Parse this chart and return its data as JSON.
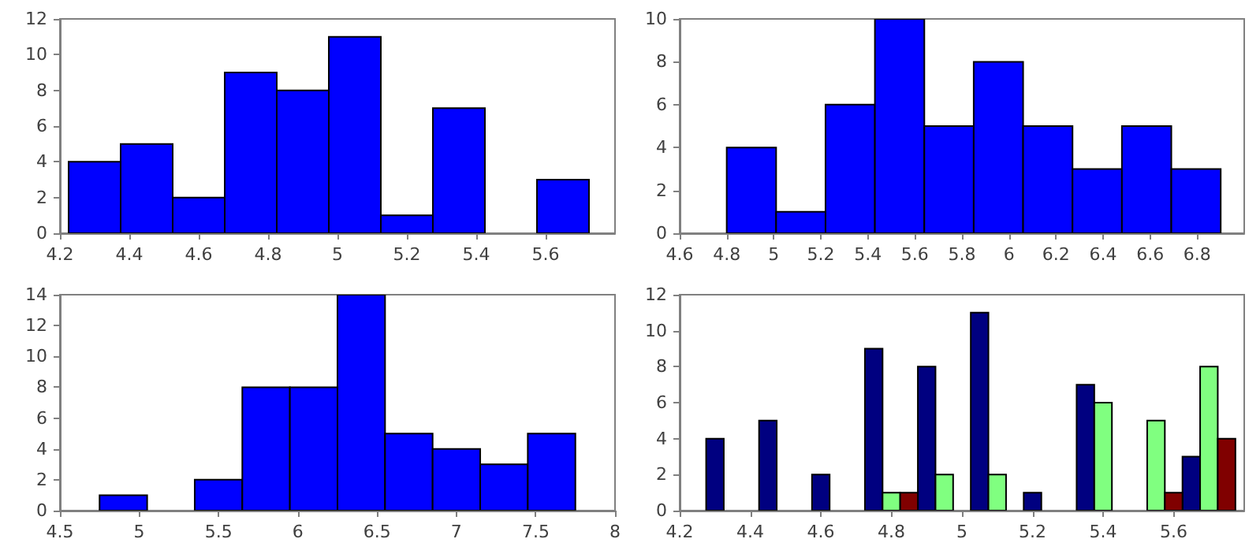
{
  "chart_data": [
    {
      "type": "histogram",
      "bins": [
        4.225,
        4.375,
        4.525,
        4.675,
        4.825,
        4.975,
        5.125,
        5.275,
        5.425,
        5.575,
        5.725
      ],
      "values": [
        4,
        5,
        2,
        9,
        8,
        11,
        1,
        7,
        0,
        3
      ],
      "color": "#0000ff",
      "xlim": [
        4.2,
        5.8
      ],
      "xticks": [
        4.2,
        4.4,
        4.6,
        4.8,
        5,
        5.2,
        5.4,
        5.6
      ],
      "ylim": [
        0,
        12
      ],
      "yticks": [
        0,
        2,
        4,
        6,
        8,
        10,
        12
      ],
      "grid": false
    },
    {
      "type": "histogram",
      "bins": [
        4.8,
        5.01,
        5.22,
        5.43,
        5.64,
        5.85,
        6.06,
        6.27,
        6.48,
        6.69,
        6.9
      ],
      "values": [
        4,
        1,
        6,
        10,
        5,
        8,
        5,
        3,
        5,
        3
      ],
      "color": "#0000ff",
      "xlim": [
        4.6,
        7.0
      ],
      "xticks": [
        4.6,
        4.8,
        5,
        5.2,
        5.4,
        5.6,
        5.8,
        6,
        6.2,
        6.4,
        6.6,
        6.8
      ],
      "ylim": [
        0,
        10
      ],
      "yticks": [
        0,
        2,
        4,
        6,
        8,
        10
      ],
      "grid": false
    },
    {
      "type": "histogram",
      "bins": [
        4.75,
        5.05,
        5.35,
        5.65,
        5.95,
        6.25,
        6.55,
        6.85,
        7.15,
        7.45,
        7.75
      ],
      "values": [
        1,
        0,
        2,
        8,
        8,
        14,
        5,
        4,
        3,
        5
      ],
      "color": "#0000ff",
      "xlim": [
        4.5,
        8
      ],
      "xticks": [
        4.5,
        5,
        5.5,
        6,
        6.5,
        7,
        7.5,
        8
      ],
      "ylim": [
        0,
        14
      ],
      "yticks": [
        0,
        2,
        4,
        6,
        8,
        10,
        12,
        14
      ],
      "grid": false
    },
    {
      "type": "bar",
      "series": [
        {
          "color": "#000080",
          "x": [
            4.3,
            4.45,
            4.6,
            4.75,
            4.9,
            5.05,
            5.2,
            5.35,
            5.5,
            5.65
          ],
          "values": [
            4,
            5,
            2,
            9,
            8,
            11,
            1,
            7,
            0,
            3
          ]
        },
        {
          "color": "#80ff80",
          "x": [
            4.35,
            4.5,
            4.65,
            4.8,
            4.95,
            5.1,
            5.25,
            5.4,
            5.55,
            5.7
          ],
          "values": [
            0,
            0,
            0,
            1,
            2,
            2,
            0,
            6,
            5,
            8
          ]
        },
        {
          "color": "#800000",
          "x": [
            4.4,
            4.55,
            4.7,
            4.85,
            5.0,
            5.15,
            5.3,
            5.45,
            5.6,
            5.75
          ],
          "values": [
            0,
            0,
            0,
            1,
            0,
            0,
            0,
            0,
            1,
            4
          ]
        }
      ],
      "xlim": [
        4.2,
        5.8
      ],
      "xticks": [
        4.2,
        4.4,
        4.6,
        4.8,
        5,
        5.2,
        5.4,
        5.6
      ],
      "ylim": [
        0,
        12
      ],
      "yticks": [
        0,
        2,
        4,
        6,
        8,
        10,
        12
      ],
      "grid": false
    }
  ]
}
